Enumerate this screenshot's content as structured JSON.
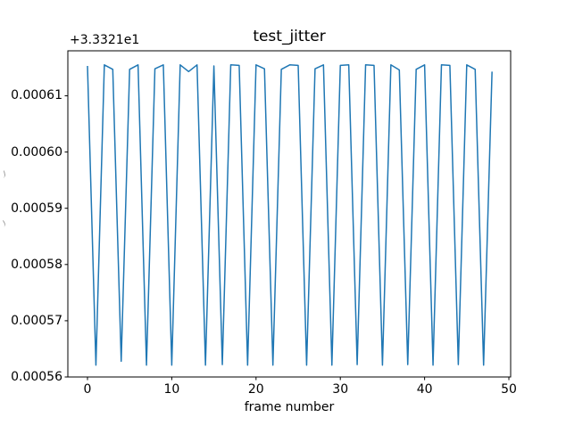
{
  "figure": {
    "background": "#ffffff",
    "axes_edge_color": "#000000",
    "line_color": "#1f77b4"
  },
  "chart_data": {
    "type": "line",
    "title": "test_jitter",
    "xlabel": "frame number",
    "ylabel": "",
    "y_offset_text": "+3.3321e1",
    "legend": null,
    "grid": false,
    "xlim": [
      -2.33,
      50.21
    ],
    "ylim": [
      0.00056,
      0.000618
    ],
    "xticks": [
      0,
      10,
      20,
      30,
      40,
      50
    ],
    "xtick_labels": [
      "0",
      "10",
      "20",
      "30",
      "40",
      "50"
    ],
    "yticks": [
      0.00056,
      0.00057,
      0.00058,
      0.00059,
      0.0006,
      0.00061
    ],
    "ytick_labels": [
      "0.00056",
      "0.00057",
      "0.00058",
      "0.00059",
      "0.00060",
      "0.00061"
    ],
    "x": [
      0,
      1,
      2,
      3,
      4,
      5,
      6,
      7,
      8,
      9,
      10,
      11,
      12,
      13,
      14,
      15,
      16,
      17,
      18,
      19,
      20,
      21,
      22,
      23,
      24,
      25,
      26,
      27,
      28,
      29,
      30,
      31,
      32,
      33,
      34,
      35,
      36,
      37,
      38,
      39,
      40,
      41,
      42,
      43,
      44,
      45,
      46,
      47,
      48
    ],
    "values": [
      0.0006153,
      0.0005621,
      0.0006155,
      0.0006147,
      0.0005628,
      0.0006147,
      0.0006155,
      0.0005621,
      0.0006148,
      0.0006155,
      0.0005621,
      0.0006155,
      0.0006143,
      0.0006155,
      0.0005621,
      0.0006153,
      0.0005622,
      0.0006155,
      0.0006154,
      0.0005621,
      0.0006155,
      0.0006148,
      0.0005621,
      0.0006147,
      0.0006155,
      0.0006154,
      0.0005621,
      0.0006148,
      0.0006155,
      0.0005621,
      0.0006154,
      0.0006155,
      0.0005622,
      0.0006155,
      0.0006154,
      0.0005621,
      0.0006155,
      0.0006146,
      0.0005622,
      0.0006147,
      0.0006155,
      0.0005621,
      0.0006155,
      0.0006154,
      0.0005622,
      0.0006155,
      0.0006147,
      0.0005621,
      0.0006143
    ]
  }
}
